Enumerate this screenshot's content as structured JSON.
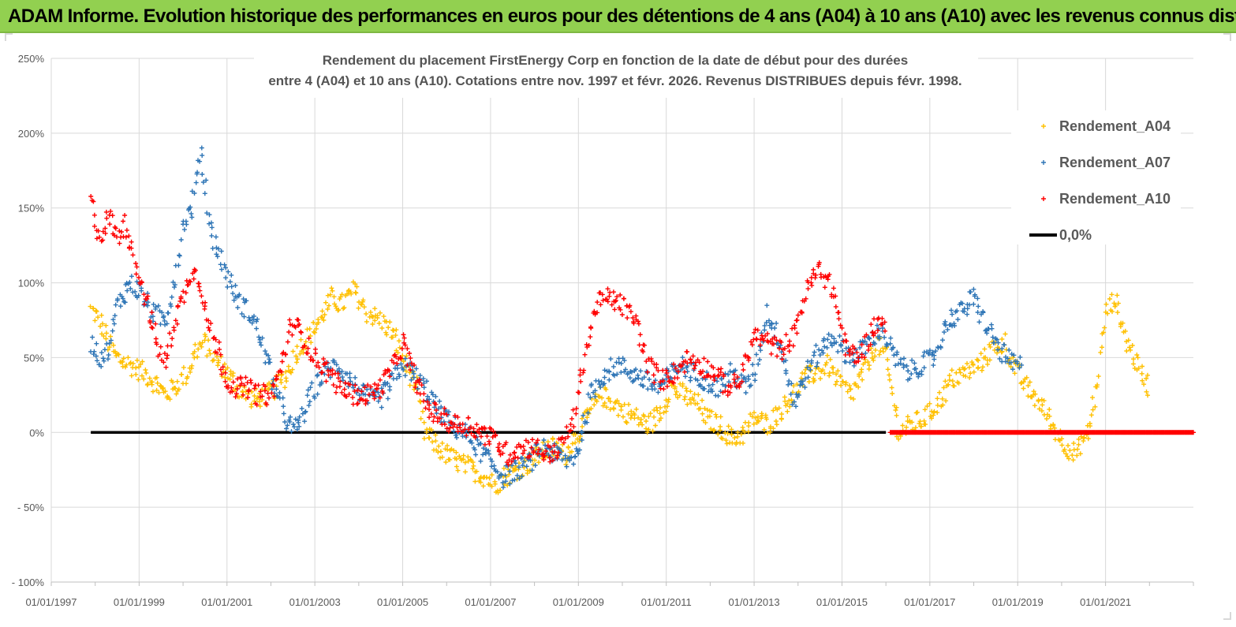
{
  "header": {
    "title": "ADAM Informe. Evolution historique des performances en euros pour des détentions de 4 ans (A04) à 10 ans (A10) avec les revenus connus distribués"
  },
  "chart_data": {
    "type": "scatter",
    "title_line1": "Rendement du placement FirstEnergy Corp en fonction de la date de début pour des durées",
    "title_line2": "entre 4 (A04) et 10 ans (A10). Cotations entre nov. 1997 et févr. 2026. Revenus DISTRIBUES depuis févr. 1998.",
    "x_range": [
      1997.0,
      2023.0
    ],
    "ylim": [
      -100,
      250
    ],
    "y_ticks": [
      {
        "value": 250,
        "label": "250%"
      },
      {
        "value": 200,
        "label": "200%"
      },
      {
        "value": 150,
        "label": "150%"
      },
      {
        "value": 100,
        "label": "100%"
      },
      {
        "value": 50,
        "label": "50%"
      },
      {
        "value": 0,
        "label": "0%"
      },
      {
        "value": -50,
        "label": "- 50%"
      },
      {
        "value": -100,
        "label": "- 100%"
      }
    ],
    "x_ticks": [
      {
        "value": 1997,
        "label": "01/01/1997"
      },
      {
        "value": 1999,
        "label": "01/01/1999"
      },
      {
        "value": 2001,
        "label": "01/01/2001"
      },
      {
        "value": 2003,
        "label": "01/01/2003"
      },
      {
        "value": 2005,
        "label": "01/01/2005"
      },
      {
        "value": 2007,
        "label": "01/01/2007"
      },
      {
        "value": 2009,
        "label": "01/01/2009"
      },
      {
        "value": 2011,
        "label": "01/01/2011"
      },
      {
        "value": 2013,
        "label": "01/01/2013"
      },
      {
        "value": 2015,
        "label": "01/01/2015"
      },
      {
        "value": 2017,
        "label": "01/01/2017"
      },
      {
        "value": 2019,
        "label": "01/01/2019"
      },
      {
        "value": 2021,
        "label": "01/01/2021"
      }
    ],
    "grid": true,
    "legend_position": "top-right",
    "series": [
      {
        "name": "Rendement_A04",
        "color": "#ffc000",
        "marker": "plus",
        "x": [
          1997.9,
          1998.1,
          1998.3,
          1998.5,
          1998.8,
          1999.1,
          1999.3,
          1999.6,
          1999.8,
          2000.1,
          2000.3,
          2000.5,
          2000.7,
          2001.0,
          2001.3,
          2001.6,
          2001.9,
          2002.1,
          2002.4,
          2002.6,
          2002.9,
          2003.1,
          2003.4,
          2003.6,
          2003.9,
          2004.2,
          2004.5,
          2004.8,
          2005.0,
          2005.3,
          2005.5,
          2005.8,
          2006.0,
          2006.3,
          2006.6,
          2006.9,
          2007.1,
          2007.3,
          2007.6,
          2007.9,
          2008.1,
          2008.4,
          2008.7,
          2008.9,
          2009.2,
          2009.5,
          2009.8,
          2010.0,
          2010.3,
          2010.6,
          2010.9,
          2011.1,
          2011.4,
          2011.7,
          2011.9,
          2012.2,
          2012.5,
          2012.8,
          2013.0,
          2013.3,
          2013.6,
          2013.9,
          2014.1,
          2014.4,
          2014.7,
          2014.9,
          2015.2,
          2015.5,
          2015.8,
          2016.0,
          2016.3,
          2016.6,
          2016.9,
          2017.2,
          2017.5,
          2017.8,
          2018.1,
          2018.4,
          2018.7,
          2018.9,
          2019.2,
          2019.5,
          2019.8,
          2020.0,
          2020.3,
          2020.6,
          2020.8,
          2021.0,
          2021.2,
          2021.5,
          2021.8,
          2022.0
        ],
        "y": [
          82,
          75,
          60,
          50,
          45,
          40,
          35,
          25,
          30,
          40,
          55,
          60,
          50,
          40,
          28,
          22,
          25,
          30,
          40,
          55,
          65,
          75,
          90,
          85,
          95,
          80,
          75,
          65,
          50,
          30,
          0,
          -10,
          -15,
          -20,
          -25,
          -30,
          -35,
          -30,
          -25,
          -20,
          -15,
          -10,
          -15,
          -5,
          10,
          25,
          20,
          15,
          10,
          5,
          15,
          30,
          25,
          20,
          10,
          5,
          -5,
          0,
          10,
          5,
          15,
          25,
          35,
          40,
          45,
          35,
          25,
          40,
          60,
          50,
          0,
          5,
          10,
          20,
          35,
          40,
          45,
          55,
          60,
          45,
          30,
          20,
          5,
          -5,
          -15,
          0,
          30,
          80,
          90,
          60,
          40,
          30
        ]
      },
      {
        "name": "Rendement_A07",
        "color": "#2e75b6",
        "marker": "plus",
        "x": [
          1997.9,
          1998.1,
          1998.3,
          1998.5,
          1998.8,
          1999.0,
          1999.3,
          1999.6,
          1999.8,
          2000.0,
          2000.2,
          2000.4,
          2000.6,
          2000.8,
          2001.0,
          2001.2,
          2001.5,
          2001.7,
          2002.0,
          2002.2,
          2002.5,
          2002.7,
          2003.0,
          2003.2,
          2003.5,
          2003.8,
          2004.1,
          2004.4,
          2004.7,
          2005.0,
          2005.2,
          2005.5,
          2005.8,
          2006.1,
          2006.4,
          2006.7,
          2007.0,
          2007.3,
          2007.6,
          2007.9,
          2008.2,
          2008.5,
          2008.8,
          2009.0,
          2009.3,
          2009.6,
          2009.9,
          2010.2,
          2010.5,
          2010.8,
          2011.0,
          2011.3,
          2011.6,
          2011.9,
          2012.2,
          2012.5,
          2012.8,
          2013.0,
          2013.3,
          2013.6,
          2013.9,
          2014.2,
          2014.5,
          2014.8,
          2015.0,
          2015.3,
          2015.6,
          2015.9,
          2016.2,
          2016.5,
          2016.8,
          2017.1,
          2017.4,
          2017.7,
          2018.0,
          2018.3,
          2018.6,
          2018.9,
          2019.1
        ],
        "y": [
          60,
          50,
          55,
          85,
          100,
          95,
          80,
          75,
          100,
          140,
          150,
          190,
          140,
          120,
          105,
          90,
          80,
          70,
          40,
          20,
          0,
          10,
          30,
          40,
          45,
          35,
          25,
          20,
          30,
          45,
          40,
          30,
          15,
          5,
          0,
          -10,
          -20,
          -30,
          -25,
          -20,
          -10,
          -15,
          -20,
          -10,
          25,
          40,
          45,
          40,
          35,
          30,
          35,
          45,
          40,
          35,
          30,
          40,
          30,
          40,
          80,
          60,
          20,
          40,
          55,
          65,
          55,
          50,
          60,
          70,
          50,
          40,
          45,
          50,
          75,
          80,
          90,
          70,
          55,
          45,
          45
        ]
      },
      {
        "name": "Rendement_A10",
        "color": "#ff0000",
        "marker": "plus",
        "x": [
          1997.9,
          1998.1,
          1998.3,
          1998.5,
          1998.7,
          1998.9,
          1999.1,
          1999.4,
          1999.6,
          1999.8,
          2000.0,
          2000.2,
          2000.4,
          2000.6,
          2000.8,
          2001.0,
          2001.2,
          2001.5,
          2001.7,
          2002.0,
          2002.2,
          2002.5,
          2002.8,
          2003.0,
          2003.3,
          2003.6,
          2003.9,
          2004.2,
          2004.5,
          2004.8,
          2005.0,
          2005.3,
          2005.6,
          2005.9,
          2006.2,
          2006.5,
          2006.8,
          2007.1,
          2007.4,
          2007.7,
          2008.0,
          2008.3,
          2008.6,
          2008.9,
          2009.1,
          2009.4,
          2009.7,
          2010.0,
          2010.3,
          2010.6,
          2010.9,
          2011.2,
          2011.5,
          2011.8,
          2012.1,
          2012.4,
          2012.7,
          2013.0,
          2013.3,
          2013.6,
          2013.9,
          2014.2,
          2014.5,
          2014.8,
          2015.1,
          2015.4,
          2015.7,
          2016.0
        ],
        "y": [
          155,
          130,
          145,
          130,
          140,
          115,
          95,
          60,
          45,
          75,
          90,
          110,
          100,
          70,
          55,
          35,
          30,
          30,
          25,
          25,
          40,
          75,
          60,
          50,
          40,
          30,
          25,
          25,
          30,
          45,
          60,
          35,
          15,
          10,
          5,
          5,
          0,
          -5,
          -15,
          -10,
          -10,
          -15,
          -10,
          10,
          45,
          85,
          90,
          85,
          75,
          45,
          35,
          40,
          50,
          45,
          40,
          30,
          35,
          65,
          60,
          55,
          65,
          95,
          110,
          95,
          55,
          50,
          70,
          75
        ]
      }
    ],
    "zero_series": {
      "name": "0,0%",
      "color": "#000000",
      "x_start": 1997.9,
      "x_end": 2016.0,
      "value": 0
    },
    "a10_zero_run": {
      "color": "#ff0000",
      "x_start": 2016.1,
      "x_end": 2023.0,
      "value": 0
    }
  }
}
